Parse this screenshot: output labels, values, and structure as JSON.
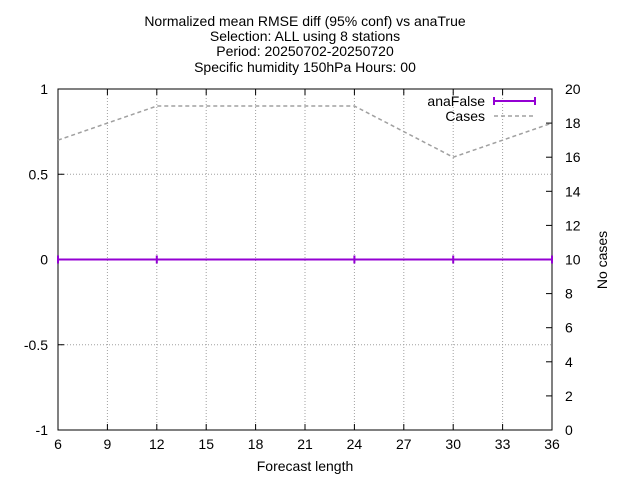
{
  "chart_data": {
    "type": "line",
    "title_lines": [
      "Normalized mean RMSE diff (95% conf) vs anaTrue",
      "Selection: ALL using     8 stations",
      "Period: 20250702-20250720",
      "Specific humidity 150hPa   Hours: 00"
    ],
    "xlabel": "Forecast length",
    "ylabel": "",
    "y2label": "No cases",
    "xlim": [
      6,
      36
    ],
    "ylim": [
      -1,
      1
    ],
    "y2lim": [
      0,
      20
    ],
    "x_ticks": [
      "6",
      "9",
      "12",
      "15",
      "18",
      "21",
      "24",
      "27",
      "30",
      "33",
      "36"
    ],
    "y_ticks": [
      "-1",
      "-0.5",
      "0",
      "0.5",
      "1"
    ],
    "y2_ticks": [
      "0",
      "2",
      "4",
      "6",
      "8",
      "10",
      "12",
      "14",
      "16",
      "18",
      "20"
    ],
    "grid": true,
    "legend_position": "top-right",
    "series": [
      {
        "name": "anaFalse",
        "axis": "y",
        "color": "#9400d3",
        "style": "solid-errorbars",
        "x": [
          6,
          12,
          24,
          30,
          36
        ],
        "values": [
          0,
          0,
          0,
          0,
          0
        ]
      },
      {
        "name": "Cases",
        "axis": "y2",
        "color": "#a0a0a0",
        "style": "dashed",
        "x": [
          6,
          12,
          24,
          30,
          36
        ],
        "values": [
          17,
          19,
          19,
          16,
          18
        ]
      }
    ]
  }
}
